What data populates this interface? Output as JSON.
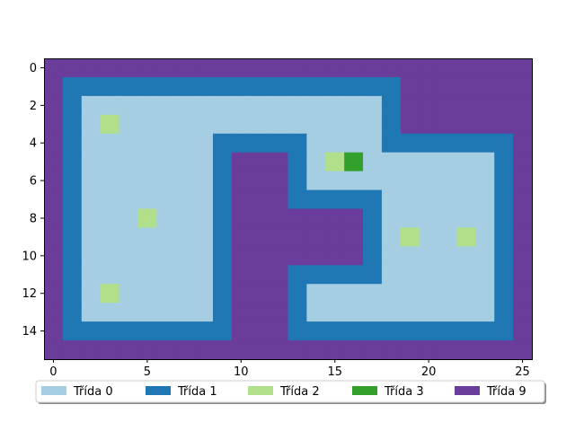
{
  "chart_data": {
    "type": "heatmap",
    "title": "",
    "xlabel": "",
    "ylabel": "",
    "xlim": [
      -0.5,
      25.5
    ],
    "ylim": [
      15.5,
      -0.5
    ],
    "xticks": [
      0,
      5,
      10,
      15,
      20,
      25
    ],
    "yticks": [
      0,
      2,
      4,
      6,
      8,
      10,
      12,
      14
    ],
    "xtick_labels": [
      "0",
      "5",
      "10",
      "15",
      "20",
      "25"
    ],
    "ytick_labels": [
      "0",
      "2",
      "4",
      "6",
      "8",
      "10",
      "12",
      "14"
    ],
    "grid": false,
    "legend_position": "bottom-center",
    "classes": [
      {
        "value": 0,
        "label": "Třída 0",
        "color": "#a6cee3"
      },
      {
        "value": 1,
        "label": "Třída 1",
        "color": "#1f78b4"
      },
      {
        "value": 2,
        "label": "Třída 2",
        "color": "#b2df8a"
      },
      {
        "value": 3,
        "label": "Třída 3",
        "color": "#33a02c"
      },
      {
        "value": 9,
        "label": "Třída 9",
        "color": "#6a3d9a"
      }
    ],
    "grid_values": [
      [
        9,
        9,
        9,
        9,
        9,
        9,
        9,
        9,
        9,
        9,
        9,
        9,
        9,
        9,
        9,
        9,
        9,
        9,
        9,
        9,
        9,
        9,
        9,
        9,
        9,
        9
      ],
      [
        9,
        1,
        1,
        1,
        1,
        1,
        1,
        1,
        1,
        1,
        1,
        1,
        1,
        1,
        1,
        1,
        1,
        1,
        1,
        9,
        9,
        9,
        9,
        9,
        9,
        9
      ],
      [
        9,
        1,
        0,
        0,
        0,
        0,
        0,
        0,
        0,
        0,
        0,
        0,
        0,
        0,
        0,
        0,
        0,
        0,
        1,
        9,
        9,
        9,
        9,
        9,
        9,
        9
      ],
      [
        9,
        1,
        0,
        2,
        0,
        0,
        0,
        0,
        0,
        0,
        0,
        0,
        0,
        0,
        0,
        0,
        0,
        0,
        1,
        9,
        9,
        9,
        9,
        9,
        9,
        9
      ],
      [
        9,
        1,
        0,
        0,
        0,
        0,
        0,
        0,
        0,
        1,
        1,
        1,
        1,
        1,
        0,
        0,
        0,
        0,
        1,
        1,
        1,
        1,
        1,
        1,
        1,
        9
      ],
      [
        9,
        1,
        0,
        0,
        0,
        0,
        0,
        0,
        0,
        1,
        9,
        9,
        9,
        1,
        0,
        2,
        3,
        0,
        0,
        0,
        0,
        0,
        0,
        0,
        1,
        9
      ],
      [
        9,
        1,
        0,
        0,
        0,
        0,
        0,
        0,
        0,
        1,
        9,
        9,
        9,
        1,
        0,
        0,
        0,
        0,
        0,
        0,
        0,
        0,
        0,
        0,
        1,
        9
      ],
      [
        9,
        1,
        0,
        0,
        0,
        0,
        0,
        0,
        0,
        1,
        9,
        9,
        9,
        1,
        1,
        1,
        1,
        1,
        0,
        0,
        0,
        0,
        0,
        0,
        1,
        9
      ],
      [
        9,
        1,
        0,
        0,
        0,
        2,
        0,
        0,
        0,
        1,
        9,
        9,
        9,
        9,
        9,
        9,
        9,
        1,
        0,
        0,
        0,
        0,
        0,
        0,
        1,
        9
      ],
      [
        9,
        1,
        0,
        0,
        0,
        0,
        0,
        0,
        0,
        1,
        9,
        9,
        9,
        9,
        9,
        9,
        9,
        1,
        0,
        2,
        0,
        0,
        2,
        0,
        1,
        9
      ],
      [
        9,
        1,
        0,
        0,
        0,
        0,
        0,
        0,
        0,
        1,
        9,
        9,
        9,
        9,
        9,
        9,
        9,
        1,
        0,
        0,
        0,
        0,
        0,
        0,
        1,
        9
      ],
      [
        9,
        1,
        0,
        0,
        0,
        0,
        0,
        0,
        0,
        1,
        9,
        9,
        9,
        1,
        1,
        1,
        1,
        1,
        0,
        0,
        0,
        0,
        0,
        0,
        1,
        9
      ],
      [
        9,
        1,
        0,
        2,
        0,
        0,
        0,
        0,
        0,
        1,
        9,
        9,
        9,
        1,
        0,
        0,
        0,
        0,
        0,
        0,
        0,
        0,
        0,
        0,
        1,
        9
      ],
      [
        9,
        1,
        0,
        0,
        0,
        0,
        0,
        0,
        0,
        1,
        9,
        9,
        9,
        1,
        0,
        0,
        0,
        0,
        0,
        0,
        0,
        0,
        0,
        0,
        1,
        9
      ],
      [
        9,
        1,
        1,
        1,
        1,
        1,
        1,
        1,
        1,
        1,
        9,
        9,
        9,
        1,
        1,
        1,
        1,
        1,
        1,
        1,
        1,
        1,
        1,
        1,
        1,
        9
      ],
      [
        9,
        9,
        9,
        9,
        9,
        9,
        9,
        9,
        9,
        9,
        9,
        9,
        9,
        9,
        9,
        9,
        9,
        9,
        9,
        9,
        9,
        9,
        9,
        9,
        9,
        9
      ]
    ]
  }
}
